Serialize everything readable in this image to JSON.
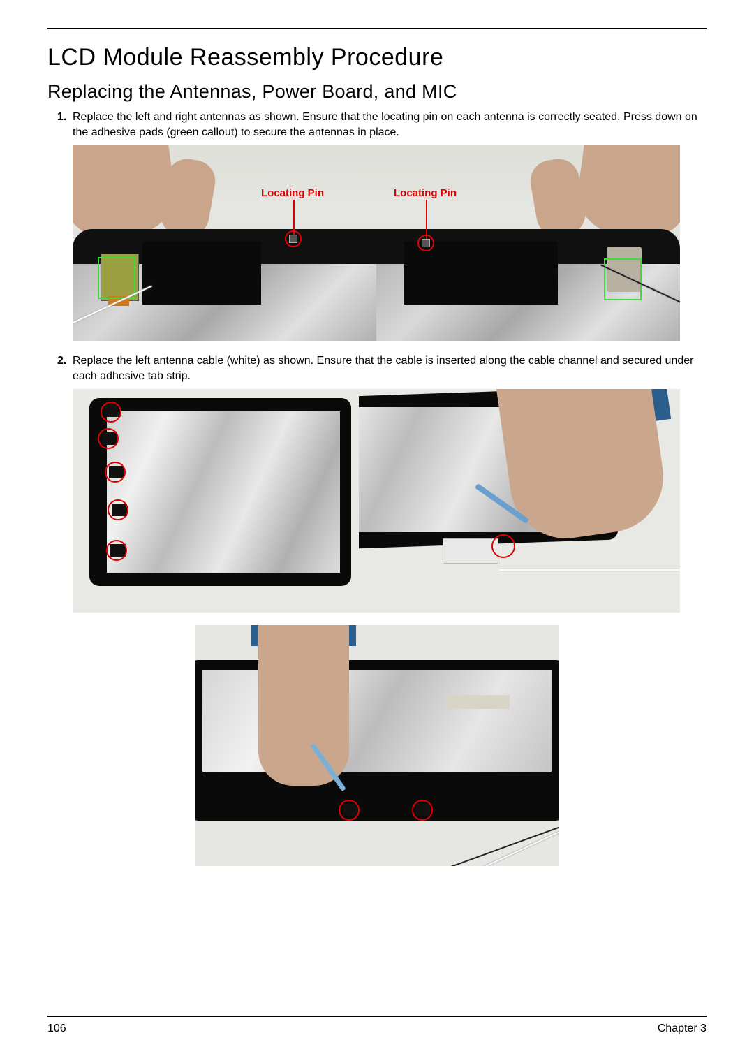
{
  "heading1": "LCD Module Reassembly Procedure",
  "heading2": "Replacing the Antennas, Power Board, and MIC",
  "steps": {
    "s1_num": "1.",
    "s1_text": "Replace the left and right antennas as shown. Ensure that the locating pin on each antenna is correctly seated. Press down on the adhesive pads (green callout) to secure the antennas in place.",
    "s2_num": "2.",
    "s2_text": "Replace the left antenna cable (white) as shown. Ensure that the cable is inserted along the cable channel and secured under each adhesive tab strip."
  },
  "labels": {
    "locating_pin": "Locating Pin"
  },
  "footer": {
    "page": "106",
    "chapter": "Chapter 3"
  },
  "colors": {
    "callout_red": "#e00000",
    "callout_green": "#3cdc3c"
  }
}
